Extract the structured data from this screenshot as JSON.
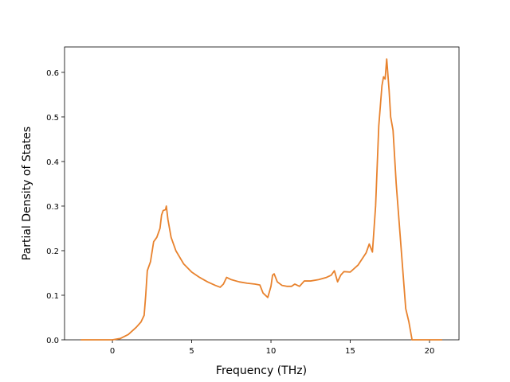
{
  "chart_data": {
    "type": "line",
    "x_label": "Frequency (THz)",
    "y_label": "Partial Density of States",
    "x": [
      -2,
      0,
      0.5,
      1,
      1.5,
      1.8,
      2,
      2.1,
      2.2,
      2.4,
      2.6,
      2.8,
      3.0,
      3.1,
      3.2,
      3.35,
      3.4,
      3.5,
      3.7,
      4,
      4.5,
      5,
      5.5,
      6,
      6.5,
      6.8,
      7,
      7.2,
      7.5,
      8,
      8.5,
      9,
      9.3,
      9.5,
      9.8,
      10,
      10.1,
      10.2,
      10.4,
      10.7,
      11,
      11.3,
      11.5,
      11.8,
      12.1,
      12.5,
      13,
      13.5,
      13.8,
      14,
      14.2,
      14.4,
      14.6,
      15,
      15.5,
      16,
      16.2,
      16.4,
      16.6,
      16.8,
      17.0,
      17.1,
      17.2,
      17.3,
      17.45,
      17.55,
      17.7,
      17.9,
      18.2,
      18.5,
      18.7,
      18.9,
      20.8
    ],
    "series": [
      {
        "color": "#e8822d",
        "values": [
          0,
          0,
          0.003,
          0.012,
          0.028,
          0.04,
          0.055,
          0.1,
          0.155,
          0.175,
          0.22,
          0.23,
          0.25,
          0.28,
          0.29,
          0.292,
          0.3,
          0.27,
          0.23,
          0.2,
          0.17,
          0.152,
          0.14,
          0.13,
          0.122,
          0.118,
          0.125,
          0.14,
          0.135,
          0.13,
          0.127,
          0.125,
          0.123,
          0.105,
          0.095,
          0.12,
          0.145,
          0.148,
          0.13,
          0.122,
          0.12,
          0.12,
          0.125,
          0.12,
          0.132,
          0.132,
          0.135,
          0.14,
          0.145,
          0.155,
          0.13,
          0.145,
          0.153,
          0.152,
          0.168,
          0.195,
          0.215,
          0.197,
          0.3,
          0.48,
          0.57,
          0.59,
          0.585,
          0.63,
          0.56,
          0.5,
          0.47,
          0.35,
          0.21,
          0.07,
          0.04,
          0,
          0
        ]
      }
    ],
    "xlim": [
      -3.02,
      21.86
    ],
    "xticks": [
      0,
      5,
      10,
      15,
      20
    ],
    "ylim": [
      0,
      0.657
    ],
    "yticks": [
      {
        "value": 0,
        "label": "0.0"
      },
      0.1,
      0.2,
      0.3,
      0.4,
      0.5,
      0.6
    ],
    "grid": false
  }
}
